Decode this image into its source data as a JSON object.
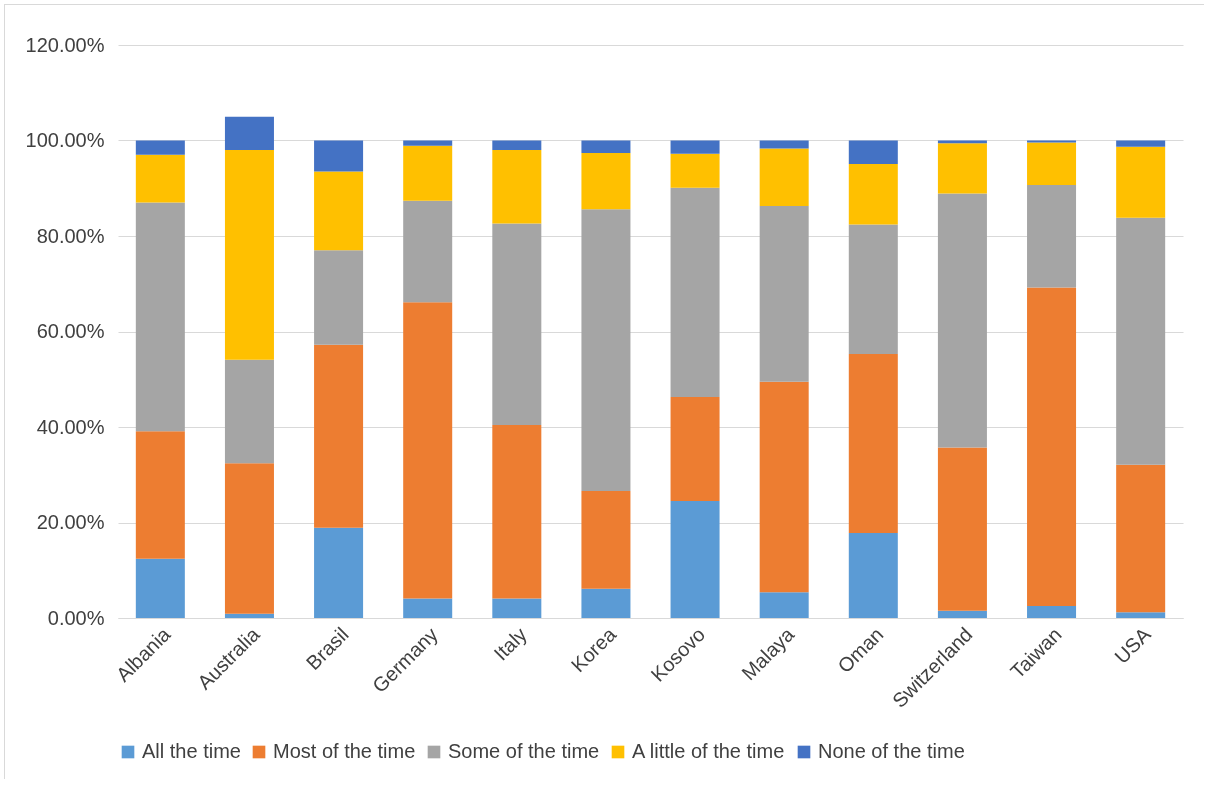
{
  "chart_data": {
    "type": "bar",
    "stacked": true,
    "categories": [
      "Albania",
      "Australia",
      "Brasil",
      "Germany",
      "Italy",
      "Korea",
      "Kosovo",
      "Malaya",
      "Oman",
      "Switzerland",
      "Taiwan",
      "USA"
    ],
    "series": [
      {
        "name": "All the time",
        "color": "#5b9bd5",
        "values": [
          12.4,
          0.9,
          18.9,
          4.1,
          4.1,
          6.1,
          24.5,
          5.4,
          17.8,
          1.5,
          2.5,
          1.2
        ]
      },
      {
        "name": "Most of the time",
        "color": "#ed7d31",
        "values": [
          26.7,
          31.5,
          38.3,
          62.0,
          36.3,
          20.5,
          21.8,
          44.1,
          37.5,
          34.2,
          66.7,
          30.9
        ]
      },
      {
        "name": "Some of the time",
        "color": "#a5a5a5",
        "values": [
          47.9,
          21.7,
          19.8,
          21.3,
          42.2,
          59.0,
          43.8,
          36.8,
          27.1,
          53.2,
          21.5,
          51.7
        ]
      },
      {
        "name": "A little of the time",
        "color": "#ffc000",
        "values": [
          10.0,
          43.9,
          16.5,
          11.5,
          15.4,
          11.8,
          7.1,
          12.0,
          12.7,
          10.5,
          8.9,
          14.9
        ]
      },
      {
        "name": "None of the time",
        "color": "#4472c4",
        "values": [
          3.0,
          7.0,
          6.5,
          1.1,
          2.0,
          2.6,
          2.8,
          1.7,
          4.9,
          0.6,
          0.4,
          1.3
        ]
      }
    ],
    "ylim": [
      0,
      120
    ],
    "yticks": [
      {
        "value": 0,
        "label": "0.00%"
      },
      {
        "value": 20,
        "label": "20.00%"
      },
      {
        "value": 40,
        "label": "40.00%"
      },
      {
        "value": 60,
        "label": "60.00%"
      },
      {
        "value": 80,
        "label": "80.00%"
      },
      {
        "value": 100,
        "label": "100.00%"
      },
      {
        "value": 120,
        "label": "120.00%"
      }
    ],
    "grid": "y",
    "legend": "bottom"
  }
}
